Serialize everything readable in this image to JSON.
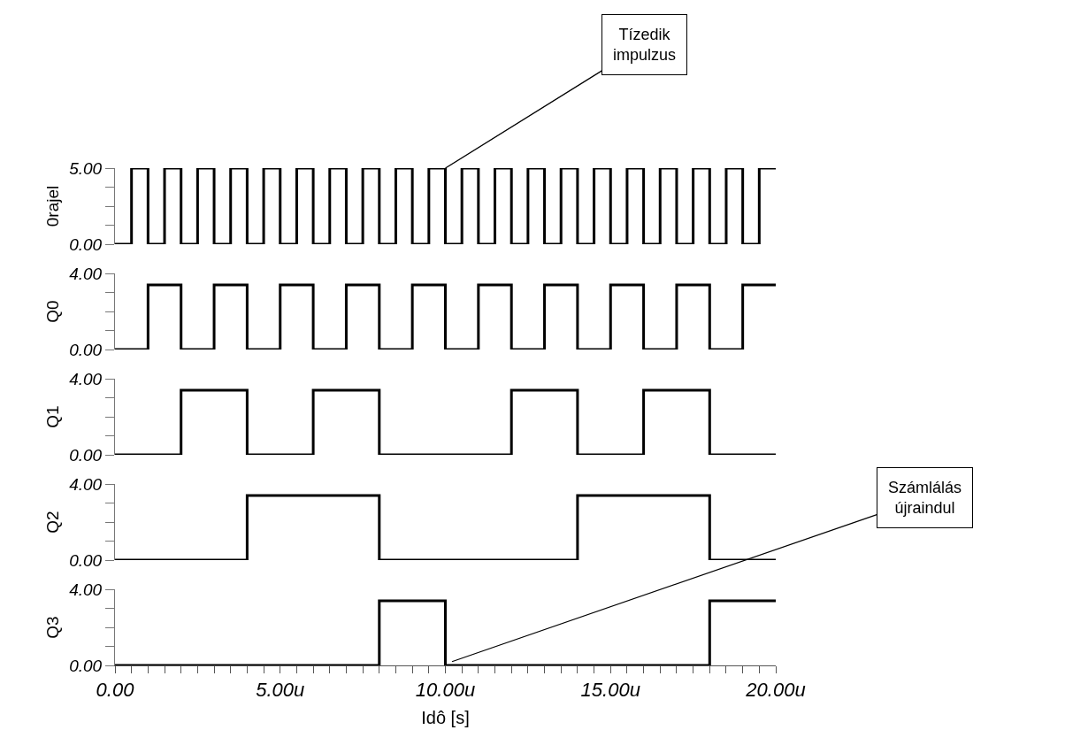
{
  "chart_data": [
    {
      "type": "step",
      "ylabel": "0rajel",
      "tick_labels": "y",
      "xlim": [
        0,
        20
      ],
      "x": [
        0,
        0.5,
        1,
        1.5,
        2,
        2.5,
        3,
        3.5,
        4,
        4.5,
        5,
        5.5,
        6,
        6.5,
        7,
        7.5,
        8,
        8.5,
        9,
        9.5,
        10,
        10.5,
        11,
        11.5,
        12,
        12.5,
        13,
        13.5,
        14,
        14.5,
        15,
        15.5,
        16,
        16.5,
        17,
        17.5,
        18,
        18.5,
        19,
        19.5,
        20
      ],
      "series": [
        {
          "color": "#000000",
          "values": [
            0,
            5,
            0,
            5,
            0,
            5,
            0,
            5,
            0,
            5,
            0,
            5,
            0,
            5,
            0,
            5,
            0,
            5,
            0,
            5,
            0,
            5,
            0,
            5,
            0,
            5,
            0,
            5,
            0,
            5,
            0,
            5,
            0,
            5,
            0,
            5,
            0,
            5,
            0,
            5,
            5
          ]
        }
      ],
      "ylim": [
        0,
        5
      ],
      "yticks": [
        {
          "value": 0,
          "label": "0.00"
        },
        {
          "value": 1.25,
          "label": null
        },
        {
          "value": 2.5,
          "label": null
        },
        {
          "value": 3.75,
          "label": null
        },
        {
          "value": 5,
          "label": "5.00"
        }
      ],
      "annotations": [
        {
          "text": "Tízedik impulzus",
          "x": 10,
          "y": 5
        }
      ]
    },
    {
      "type": "step",
      "ylabel": "Q0",
      "tick_labels": "y",
      "xlim": [
        0,
        20
      ],
      "x": [
        0,
        1,
        2,
        3,
        4,
        5,
        6,
        7,
        8,
        9,
        10,
        11,
        12,
        13,
        14,
        15,
        16,
        17,
        18,
        19,
        20
      ],
      "series": [
        {
          "color": "#000000",
          "values": [
            0,
            3.4,
            0,
            3.4,
            0,
            3.4,
            0,
            3.4,
            0,
            3.4,
            0,
            3.4,
            0,
            3.4,
            0,
            3.4,
            0,
            3.4,
            0,
            3.4,
            3.4
          ]
        }
      ],
      "ylim": [
        0,
        4
      ],
      "yticks": [
        {
          "value": 0,
          "label": "0.00"
        },
        {
          "value": 1,
          "label": null
        },
        {
          "value": 2,
          "label": null
        },
        {
          "value": 3,
          "label": null
        },
        {
          "value": 4,
          "label": "4.00"
        }
      ]
    },
    {
      "type": "step",
      "ylabel": "Q1",
      "tick_labels": "y",
      "xlim": [
        0,
        20
      ],
      "x": [
        0,
        2,
        4,
        6,
        8,
        12,
        14,
        16,
        18,
        20
      ],
      "series": [
        {
          "color": "#000000",
          "values": [
            0,
            3.4,
            0,
            3.4,
            0,
            3.4,
            0,
            3.4,
            0,
            0
          ]
        }
      ],
      "ylim": [
        0,
        4
      ],
      "yticks": [
        {
          "value": 0,
          "label": "0.00"
        },
        {
          "value": 1,
          "label": null
        },
        {
          "value": 2,
          "label": null
        },
        {
          "value": 3,
          "label": null
        },
        {
          "value": 4,
          "label": "4.00"
        }
      ]
    },
    {
      "type": "step",
      "ylabel": "Q2",
      "tick_labels": "y",
      "xlim": [
        0,
        20
      ],
      "x": [
        0,
        4,
        8,
        14,
        18,
        20
      ],
      "series": [
        {
          "color": "#000000",
          "values": [
            0,
            3.4,
            0,
            3.4,
            0,
            0
          ]
        }
      ],
      "ylim": [
        0,
        4
      ],
      "yticks": [
        {
          "value": 0,
          "label": "0.00"
        },
        {
          "value": 1,
          "label": null
        },
        {
          "value": 2,
          "label": null
        },
        {
          "value": 3,
          "label": null
        },
        {
          "value": 4,
          "label": "4.00"
        }
      ]
    },
    {
      "type": "step",
      "ylabel": "Q3",
      "xlabel": "Idô [s]",
      "xlim": [
        0,
        20
      ],
      "x": [
        0,
        8,
        10,
        18,
        20
      ],
      "series": [
        {
          "color": "#000000",
          "values": [
            0,
            3.4,
            0,
            3.4,
            3.4
          ]
        }
      ],
      "ylim": [
        0,
        4
      ],
      "yticks": [
        {
          "value": 0,
          "label": "0.00"
        },
        {
          "value": 1,
          "label": null
        },
        {
          "value": 2,
          "label": null
        },
        {
          "value": 3,
          "label": null
        },
        {
          "value": 4,
          "label": "4.00"
        }
      ],
      "xticks": [
        {
          "value": 0,
          "label": "0.00"
        },
        {
          "value": 0.5,
          "label": null
        },
        {
          "value": 1,
          "label": null
        },
        {
          "value": 1.5,
          "label": null
        },
        {
          "value": 2,
          "label": null
        },
        {
          "value": 2.5,
          "label": null
        },
        {
          "value": 3,
          "label": null
        },
        {
          "value": 3.5,
          "label": null
        },
        {
          "value": 4,
          "label": null
        },
        {
          "value": 4.5,
          "label": null
        },
        {
          "value": 5,
          "label": "5.00u"
        },
        {
          "value": 5.5,
          "label": null
        },
        {
          "value": 6,
          "label": null
        },
        {
          "value": 6.5,
          "label": null
        },
        {
          "value": 7,
          "label": null
        },
        {
          "value": 7.5,
          "label": null
        },
        {
          "value": 8,
          "label": null
        },
        {
          "value": 8.5,
          "label": null
        },
        {
          "value": 9,
          "label": null
        },
        {
          "value": 9.5,
          "label": null
        },
        {
          "value": 10,
          "label": "10.00u"
        },
        {
          "value": 10.5,
          "label": null
        },
        {
          "value": 11,
          "label": null
        },
        {
          "value": 11.5,
          "label": null
        },
        {
          "value": 12,
          "label": null
        },
        {
          "value": 12.5,
          "label": null
        },
        {
          "value": 13,
          "label": null
        },
        {
          "value": 13.5,
          "label": null
        },
        {
          "value": 14,
          "label": null
        },
        {
          "value": 14.5,
          "label": null
        },
        {
          "value": 15,
          "label": "15.00u"
        },
        {
          "value": 15.5,
          "label": null
        },
        {
          "value": 16,
          "label": null
        },
        {
          "value": 16.5,
          "label": null
        },
        {
          "value": 17,
          "label": null
        },
        {
          "value": 17.5,
          "label": null
        },
        {
          "value": 18,
          "label": null
        },
        {
          "value": 18.5,
          "label": null
        },
        {
          "value": 19,
          "label": null
        },
        {
          "value": 19.5,
          "label": null
        },
        {
          "value": 20,
          "label": "20.00u"
        }
      ],
      "annotations": [
        {
          "text": "Számlálás újraindul",
          "x": 10.2,
          "y": 0.2
        }
      ]
    }
  ]
}
